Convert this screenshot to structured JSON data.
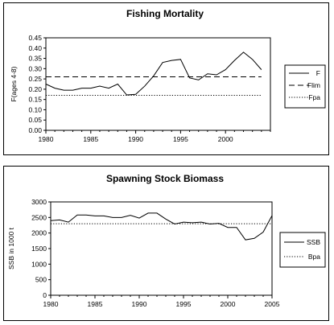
{
  "chart_data": [
    {
      "type": "line",
      "title": "Fishing Mortality",
      "xlabel": "",
      "ylabel": "F(ages 4-8)",
      "xlim": [
        1980,
        2005
      ],
      "ylim": [
        0,
        0.45
      ],
      "xticks": [
        1980,
        1985,
        1990,
        1995,
        2000
      ],
      "yticks": [
        0.0,
        0.05,
        0.1,
        0.15,
        0.2,
        0.25,
        0.3,
        0.35,
        0.4,
        0.45
      ],
      "ytick_labels": [
        "0.00",
        "0.05",
        "0.10",
        "0.15",
        "0.20",
        "0.25",
        "0.30",
        "0.35",
        "0.40",
        "0.45"
      ],
      "grid": false,
      "legend_position": "right",
      "series": [
        {
          "name": "F",
          "style": "solid",
          "x": [
            1980,
            1981,
            1982,
            1983,
            1984,
            1985,
            1986,
            1987,
            1988,
            1989,
            1990,
            1991,
            1992,
            1993,
            1994,
            1995,
            1996,
            1997,
            1998,
            1999,
            2000,
            2001,
            2002,
            2003,
            2004
          ],
          "y": [
            0.225,
            0.205,
            0.195,
            0.195,
            0.205,
            0.205,
            0.215,
            0.205,
            0.225,
            0.172,
            0.175,
            0.215,
            0.265,
            0.33,
            0.34,
            0.345,
            0.255,
            0.245,
            0.275,
            0.27,
            0.295,
            0.34,
            0.38,
            0.345,
            0.295
          ]
        },
        {
          "name": "Flim",
          "style": "dashed",
          "x": [
            1980,
            2004
          ],
          "y": [
            0.26,
            0.26
          ]
        },
        {
          "name": "Fpa",
          "style": "dotted",
          "x": [
            1980,
            2004
          ],
          "y": [
            0.17,
            0.17
          ]
        }
      ]
    },
    {
      "type": "line",
      "title": "Spawning Stock Biomass",
      "xlabel": "",
      "ylabel": "SSB in 1000 t",
      "xlim": [
        1980,
        2005
      ],
      "ylim": [
        0,
        3000
      ],
      "xticks": [
        1980,
        1985,
        1990,
        1995,
        2000,
        2005
      ],
      "yticks": [
        0,
        500,
        1000,
        1500,
        2000,
        2500,
        3000
      ],
      "ytick_labels": [
        "0",
        "500",
        "1000",
        "1500",
        "2000",
        "2500",
        "3000"
      ],
      "grid": false,
      "legend_position": "right",
      "series": [
        {
          "name": "SSB",
          "style": "solid",
          "x": [
            1980,
            1981,
            1982,
            1983,
            1984,
            1985,
            1986,
            1987,
            1988,
            1989,
            1990,
            1991,
            1992,
            1993,
            1994,
            1995,
            1996,
            1997,
            1998,
            1999,
            2000,
            2001,
            2002,
            2003,
            2004,
            2005
          ],
          "y": [
            2400,
            2420,
            2350,
            2580,
            2580,
            2550,
            2550,
            2500,
            2500,
            2570,
            2480,
            2640,
            2640,
            2450,
            2290,
            2350,
            2330,
            2350,
            2290,
            2310,
            2180,
            2180,
            1780,
            1830,
            2030,
            2560
          ]
        },
        {
          "name": "Bpa",
          "style": "dotted",
          "x": [
            1980,
            2005
          ],
          "y": [
            2300,
            2300
          ]
        }
      ]
    }
  ]
}
